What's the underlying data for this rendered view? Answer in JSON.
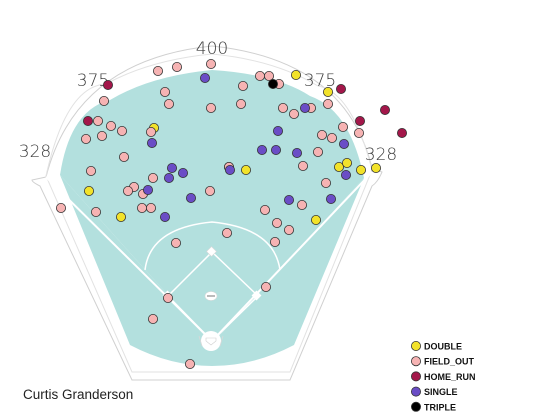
{
  "chart_data": {
    "type": "scatter",
    "title": "",
    "batter": "Curtis Granderson",
    "field_labels": {
      "left_line": "328",
      "left_center": "375",
      "center": "400",
      "right_center": "375",
      "right_line": "328"
    },
    "legend_position": "bottom-right",
    "colors": {
      "DOUBLE": "#f2e22a",
      "FIELD_OUT": "#f6b3b3",
      "HOME_RUN": "#a3174a",
      "SINGLE": "#6a4dc6",
      "TRIPLE": "#000000",
      "field": "#b3e0de",
      "infield_dirt": "#ffffff"
    },
    "series": [
      {
        "name": "DOUBLE",
        "points": [
          [
            296,
            75
          ],
          [
            328,
            92
          ],
          [
            154,
            128
          ],
          [
            339,
            167
          ],
          [
            347,
            163
          ],
          [
            361,
            170
          ],
          [
            376,
            168
          ],
          [
            89,
            191
          ],
          [
            246,
            170
          ],
          [
            229,
            167
          ],
          [
            121,
            217
          ],
          [
            316,
            220
          ]
        ]
      },
      {
        "name": "FIELD_OUT",
        "points": [
          [
            158,
            71
          ],
          [
            177,
            67
          ],
          [
            211,
            64
          ],
          [
            260,
            76
          ],
          [
            269,
            76
          ],
          [
            243,
            86
          ],
          [
            279,
            84
          ],
          [
            165,
            92
          ],
          [
            169,
            104
          ],
          [
            211,
            108
          ],
          [
            241,
            104
          ],
          [
            283,
            108
          ],
          [
            294,
            114
          ],
          [
            311,
            108
          ],
          [
            328,
            104
          ],
          [
            104,
            101
          ],
          [
            98,
            121
          ],
          [
            111,
            126
          ],
          [
            122,
            131
          ],
          [
            86,
            139
          ],
          [
            102,
            136
          ],
          [
            151,
            132
          ],
          [
            343,
            127
          ],
          [
            359,
            133
          ],
          [
            322,
            135
          ],
          [
            332,
            138
          ],
          [
            124,
            157
          ],
          [
            318,
            152
          ],
          [
            229,
            167
          ],
          [
            91,
            171
          ],
          [
            134,
            187
          ],
          [
            128,
            191
          ],
          [
            143,
            194
          ],
          [
            153,
            178
          ],
          [
            142,
            208
          ],
          [
            151,
            208
          ],
          [
            96,
            212
          ],
          [
            61,
            208
          ],
          [
            210,
            191
          ],
          [
            303,
            166
          ],
          [
            326,
            183
          ],
          [
            265,
            210
          ],
          [
            302,
            205
          ],
          [
            289,
            230
          ],
          [
            275,
            242
          ],
          [
            277,
            223
          ],
          [
            227,
            233
          ],
          [
            176,
            243
          ],
          [
            266,
            287
          ],
          [
            168,
            298
          ],
          [
            153,
            319
          ],
          [
            190,
            364
          ]
        ]
      },
      {
        "name": "HOME_RUN",
        "points": [
          [
            108,
            85
          ],
          [
            341,
            89
          ],
          [
            385,
            110
          ],
          [
            402,
            133
          ],
          [
            88,
            121
          ],
          [
            360,
            121
          ]
        ]
      },
      {
        "name": "SINGLE",
        "points": [
          [
            205,
            78
          ],
          [
            305,
            108
          ],
          [
            278,
            131
          ],
          [
            344,
            144
          ],
          [
            297,
            153
          ],
          [
            262,
            150
          ],
          [
            276,
            150
          ],
          [
            152,
            143
          ],
          [
            172,
            168
          ],
          [
            183,
            173
          ],
          [
            169,
            178
          ],
          [
            230,
            170
          ],
          [
            346,
            175
          ],
          [
            148,
            190
          ],
          [
            191,
            198
          ],
          [
            165,
            217
          ],
          [
            289,
            200
          ],
          [
            331,
            199
          ]
        ]
      },
      {
        "name": "TRIPLE",
        "points": [
          [
            273,
            84
          ]
        ]
      }
    ]
  }
}
